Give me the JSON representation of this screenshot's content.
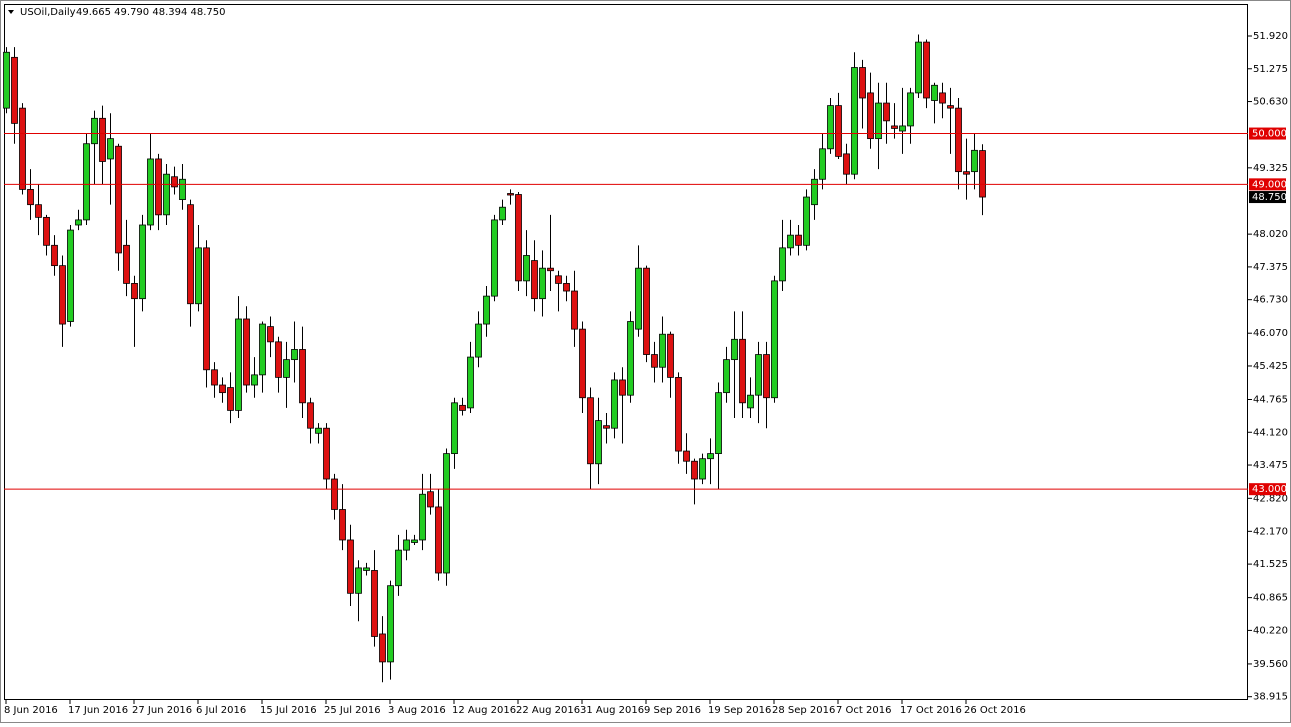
{
  "chart_data": {
    "type": "candlestick",
    "title": "USOil,Daily",
    "subtitle": "49.665 49.790 48.394 48.750",
    "categories": [
      "8 Jun 2016",
      null,
      null,
      null,
      null,
      null,
      null,
      null,
      "17 Jun 2016",
      null,
      null,
      null,
      null,
      null,
      null,
      null,
      "27 Jun 2016",
      null,
      null,
      null,
      null,
      null,
      null,
      null,
      "6 Jul 2016",
      null,
      null,
      null,
      null,
      null,
      null,
      null,
      "15 Jul 2016",
      null,
      null,
      null,
      null,
      null,
      null,
      null,
      "25 Jul 2016",
      null,
      null,
      null,
      null,
      null,
      null,
      null,
      "3 Aug 2016",
      null,
      null,
      null,
      null,
      null,
      null,
      null,
      "12 Aug 2016",
      null,
      null,
      null,
      null,
      null,
      null,
      null,
      "22 Aug 2016",
      null,
      null,
      null,
      null,
      null,
      null,
      null,
      "31 Aug 2016",
      null,
      null,
      null,
      null,
      null,
      null,
      null,
      "9 Sep 2016",
      null,
      null,
      null,
      null,
      null,
      null,
      null,
      "19 Sep 2016",
      null,
      null,
      null,
      null,
      null,
      null,
      null,
      "28 Sep 2016",
      null,
      null,
      null,
      null,
      null,
      null,
      null,
      "7 Oct 2016",
      null,
      null,
      null,
      null,
      null,
      null,
      null,
      "17 Oct 2016",
      null,
      null,
      null,
      null,
      null,
      null,
      null,
      "26 Oct 2016",
      null,
      null
    ],
    "open": [
      50.5,
      51.5,
      50.5,
      48.9,
      48.6,
      48.35,
      47.8,
      47.4,
      46.3,
      48.2,
      48.3,
      49.8,
      50.3,
      49.5,
      49.75,
      47.8,
      47.05,
      46.75,
      48.2,
      49.5,
      48.4,
      49.15,
      48.7,
      48.6,
      46.65,
      47.75,
      45.35,
      45.05,
      45.0,
      44.55,
      46.35,
      45.05,
      45.25,
      46.2,
      45.9,
      45.2,
      45.55,
      45.75,
      44.7,
      44.1,
      44.2,
      43.2,
      42.6,
      42.0,
      40.95,
      41.4,
      41.4,
      40.15,
      39.6,
      41.1,
      41.8,
      41.95,
      42.0,
      42.95,
      42.65,
      41.35,
      43.7,
      44.65,
      44.6,
      45.6,
      46.25,
      46.8,
      48.3,
      48.82,
      48.8,
      47.1,
      47.5,
      46.75,
      47.35,
      47.2,
      47.05,
      46.9,
      46.15,
      44.8,
      43.5,
      44.25,
      44.2,
      45.15,
      44.85,
      46.15,
      47.35,
      45.65,
      45.4,
      46.05,
      45.2,
      43.75,
      43.55,
      43.2,
      43.6,
      43.7,
      44.9,
      45.55,
      45.95,
      44.6,
      44.85,
      45.65,
      44.8,
      47.1,
      47.75,
      48.0,
      47.8,
      48.6,
      49.1,
      49.7,
      50.55,
      49.6,
      49.2,
      51.3,
      50.8,
      49.9,
      50.6,
      50.15,
      50.05,
      50.15,
      50.8,
      51.8,
      50.65,
      50.8,
      50.55,
      50.5,
      49.25,
      49.25,
      49.665
    ],
    "high": [
      51.7,
      51.7,
      50.6,
      49.3,
      49.0,
      48.4,
      48.0,
      47.6,
      48.2,
      48.5,
      50.0,
      50.45,
      50.55,
      50.4,
      49.8,
      48.3,
      47.2,
      48.4,
      50.0,
      49.6,
      49.4,
      49.35,
      49.4,
      48.7,
      48.2,
      47.9,
      45.5,
      45.2,
      45.3,
      46.8,
      46.6,
      45.6,
      46.3,
      46.4,
      46.0,
      45.9,
      46.3,
      46.2,
      44.8,
      44.3,
      44.3,
      43.3,
      43.1,
      42.3,
      41.6,
      41.55,
      41.8,
      40.5,
      41.2,
      42.1,
      42.2,
      42.1,
      43.3,
      43.3,
      43.0,
      43.8,
      44.8,
      44.8,
      45.9,
      46.5,
      47.0,
      48.4,
      48.7,
      48.9,
      48.85,
      48.1,
      47.9,
      47.7,
      48.4,
      47.3,
      47.2,
      47.3,
      46.3,
      45.0,
      44.8,
      44.5,
      45.3,
      45.4,
      46.5,
      47.8,
      47.4,
      45.9,
      46.4,
      46.1,
      45.3,
      44.1,
      43.6,
      43.7,
      44.0,
      45.1,
      45.8,
      46.5,
      46.5,
      45.2,
      45.9,
      45.9,
      47.2,
      48.3,
      48.3,
      48.2,
      48.9,
      49.3,
      50.0,
      50.7,
      50.8,
      49.8,
      51.6,
      51.45,
      51.2,
      51.0,
      51.0,
      50.6,
      50.9,
      50.9,
      51.95,
      51.85,
      51.0,
      51.0,
      50.9,
      50.7,
      49.9,
      50.0,
      49.79
    ],
    "low": [
      50.4,
      49.8,
      48.8,
      48.3,
      48.0,
      47.6,
      47.2,
      45.8,
      46.2,
      48.1,
      48.2,
      49.0,
      49.0,
      48.6,
      47.3,
      46.8,
      45.8,
      46.5,
      48.1,
      48.1,
      48.2,
      48.8,
      48.5,
      46.2,
      46.5,
      45.0,
      44.8,
      44.7,
      44.3,
      44.4,
      44.9,
      44.8,
      44.9,
      45.6,
      44.9,
      44.6,
      45.1,
      44.4,
      43.9,
      43.9,
      43.0,
      42.4,
      41.8,
      40.7,
      40.4,
      41.3,
      39.9,
      39.2,
      39.25,
      40.9,
      41.6,
      41.9,
      41.8,
      42.5,
      41.2,
      41.1,
      43.4,
      44.45,
      44.5,
      45.4,
      46.0,
      46.7,
      48.2,
      48.6,
      46.9,
      46.8,
      46.5,
      46.4,
      46.9,
      46.5,
      46.7,
      45.8,
      44.5,
      43.0,
      43.1,
      43.9,
      44.0,
      43.9,
      44.7,
      46.0,
      45.5,
      45.1,
      45.1,
      44.8,
      43.5,
      43.3,
      42.7,
      43.1,
      43.1,
      43.0,
      44.7,
      44.4,
      44.4,
      44.4,
      44.3,
      44.2,
      44.7,
      46.9,
      47.6,
      47.6,
      47.7,
      48.3,
      48.9,
      49.6,
      49.5,
      49.0,
      49.1,
      50.1,
      49.7,
      49.3,
      49.8,
      49.9,
      49.6,
      49.8,
      50.7,
      50.5,
      50.2,
      50.3,
      49.6,
      48.9,
      48.7,
      48.9,
      48.394
    ],
    "close": [
      51.6,
      50.2,
      48.9,
      48.6,
      48.35,
      47.8,
      47.4,
      46.25,
      48.1,
      48.3,
      49.8,
      50.3,
      49.45,
      49.9,
      47.65,
      47.05,
      46.75,
      48.2,
      49.5,
      48.4,
      49.2,
      48.95,
      49.1,
      46.65,
      47.75,
      45.35,
      45.05,
      44.9,
      44.55,
      46.35,
      45.05,
      45.25,
      46.25,
      45.9,
      45.2,
      45.55,
      45.75,
      44.7,
      44.2,
      44.2,
      43.2,
      42.6,
      42.0,
      40.95,
      41.45,
      41.45,
      40.1,
      39.6,
      41.1,
      41.8,
      42.0,
      42.0,
      42.9,
      42.65,
      41.35,
      43.7,
      44.7,
      44.55,
      45.6,
      46.25,
      46.8,
      48.3,
      48.55,
      48.79,
      47.1,
      47.6,
      46.75,
      47.35,
      47.3,
      47.05,
      46.9,
      46.15,
      44.8,
      43.5,
      44.35,
      44.2,
      45.15,
      44.85,
      46.3,
      47.35,
      45.65,
      45.4,
      46.05,
      45.2,
      43.75,
      43.55,
      43.2,
      43.6,
      43.7,
      44.9,
      45.55,
      45.95,
      44.7,
      44.85,
      45.65,
      44.8,
      47.1,
      47.75,
      48.0,
      47.8,
      48.75,
      49.1,
      49.7,
      50.55,
      49.55,
      49.2,
      51.3,
      50.7,
      49.9,
      50.6,
      50.25,
      50.1,
      50.15,
      50.8,
      51.8,
      50.7,
      50.95,
      50.6,
      50.5,
      49.25,
      49.2,
      49.67,
      48.75
    ],
    "up_color": "#22cc22",
    "down_color": "#dd1111",
    "ylim": [
      38.85,
      52.55
    ],
    "yticks": [
      {
        "value": 38.915,
        "label": "38.915"
      },
      {
        "value": 39.56,
        "label": "39.560"
      },
      {
        "value": 40.22,
        "label": "40.220"
      },
      40.865,
      41.525,
      {
        "value": 42.17,
        "label": "42.170"
      },
      {
        "value": 42.82,
        "label": "42.820"
      },
      43.475,
      {
        "value": 44.12,
        "label": "44.120"
      },
      44.765,
      45.425,
      {
        "value": 46.07,
        "label": "46.070"
      },
      {
        "value": 46.73,
        "label": "46.730"
      },
      47.375,
      {
        "value": 48.02,
        "label": "48.020"
      },
      49.325,
      {
        "value": 50.63,
        "label": "50.630"
      },
      51.275,
      {
        "value": 51.92,
        "label": "51.920"
      }
    ],
    "hlines": [
      {
        "value": 50,
        "label": "50.000"
      },
      {
        "value": 49,
        "label": "49.000"
      },
      {
        "value": 43,
        "label": "43.000"
      }
    ],
    "hline_color": "#e00000",
    "last_price": {
      "value": 48.75,
      "label": "48.750"
    }
  }
}
